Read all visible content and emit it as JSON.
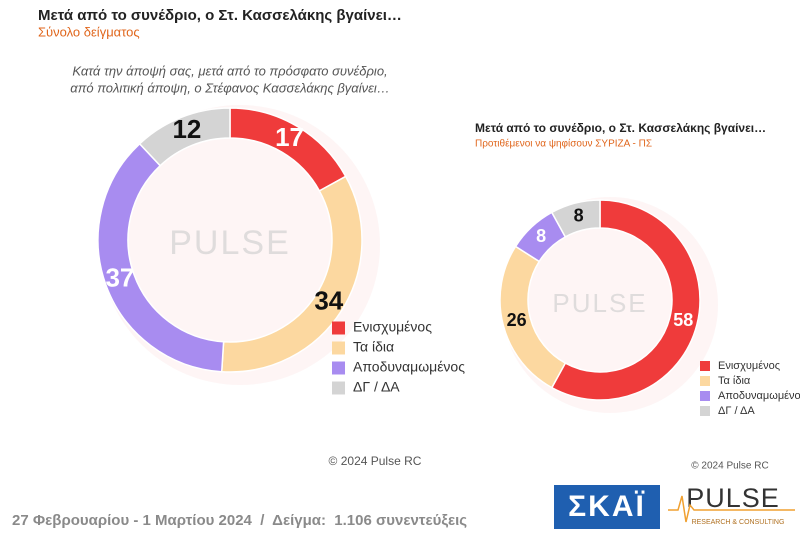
{
  "chart_data": [
    {
      "type": "donut",
      "title": "Μετά από το συνέδριο, ο Στ. Κασσελάκης βγαίνει…",
      "subtitle": "Σύνολο δείγματος",
      "question": [
        "Κατά την άποψή σας, μετά από το πρόσφατο συνέδριο,",
        "από πολιτική άποψη, ο Στέφανος Κασσελάκης βγαίνει…"
      ],
      "watermark": "PULSE",
      "categories": [
        "Ενισχυμένος",
        "Τα ίδια",
        "Αποδυναμωμένος",
        "ΔΓ / ΔΑ"
      ],
      "values": [
        17,
        34,
        37,
        12
      ],
      "colors": [
        "#ef3b3b",
        "#fcd8a0",
        "#a88cf0",
        "#d4d4d4"
      ],
      "copyright": "© 2024 Pulse RC"
    },
    {
      "type": "donut",
      "title": "Μετά από το συνέδριο, ο Στ. Κασσελάκης βγαίνει…",
      "subtitle": "Προτιθέμενοι να ψηφίσουν ΣΥΡΙΖΑ - ΠΣ",
      "watermark": "PULSE",
      "categories": [
        "Ενισχυμένος",
        "Τα ίδια",
        "Αποδυναμωμένος",
        "ΔΓ / ΔΑ"
      ],
      "values": [
        58,
        26,
        8,
        8
      ],
      "colors": [
        "#ef3b3b",
        "#fcd8a0",
        "#a88cf0",
        "#d4d4d4"
      ],
      "copyright": "© 2024 Pulse RC"
    }
  ],
  "footer": "27 Φεβρουαρίου - 1 Μαρτίου 2024  /  Δείγμα:  1.106 συνεντεύξεις",
  "logos": {
    "skai": "ΣΚΑΪ",
    "pulse": "PULSE",
    "pulse_sub": "RESEARCH & CONSULTING"
  }
}
